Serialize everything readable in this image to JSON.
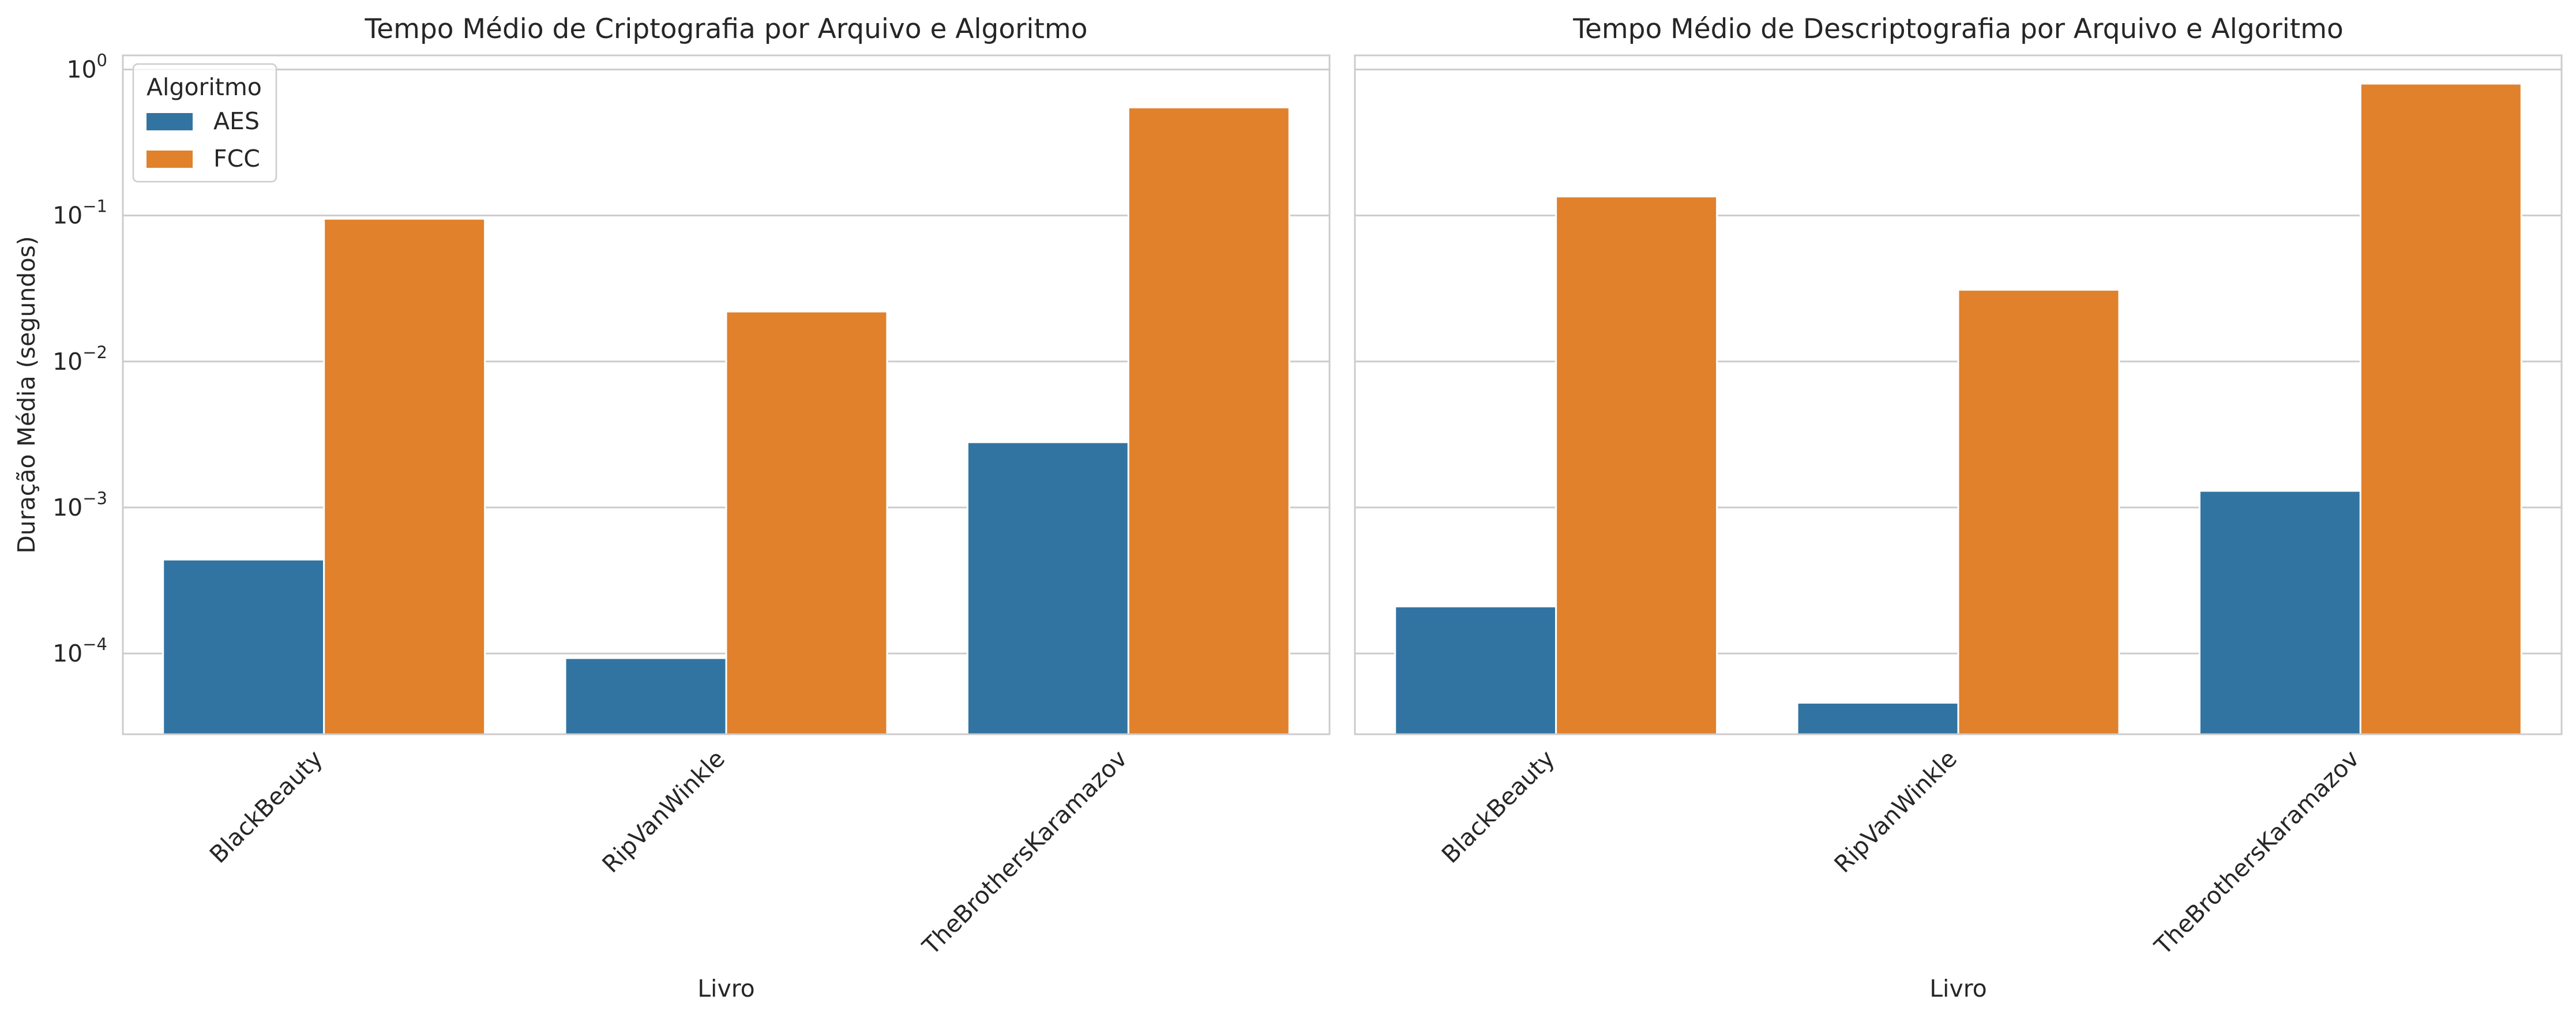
{
  "chart_data": [
    {
      "type": "bar",
      "title": "Tempo Médio de Criptografia por Arquivo e Algoritmo",
      "xlabel": "Livro",
      "ylabel": "Duração Média (segundos)",
      "yscale": "log",
      "ylim": [
        2.8e-05,
        1.25
      ],
      "yticks": [
        "10^-4",
        "10^-3",
        "10^-2",
        "10^-1",
        "10^0"
      ],
      "grid": true,
      "legend": {
        "title": "Algoritmo",
        "placement": "top-left"
      },
      "categories": [
        "BlackBeauty",
        "RipVanWinkle",
        "TheBrothersKaramazov"
      ],
      "series": [
        {
          "name": "AES",
          "color": "#3274a1",
          "values": [
            0.00044,
            9.3e-05,
            0.0028
          ]
        },
        {
          "name": "FCC",
          "color": "#e1812c",
          "values": [
            0.095,
            0.022,
            0.55
          ]
        }
      ]
    },
    {
      "type": "bar",
      "title": "Tempo Médio de Descriptografia por Arquivo e Algoritmo",
      "xlabel": "Livro",
      "ylabel": "",
      "yscale": "log",
      "ylim": [
        2.8e-05,
        1.25
      ],
      "grid": true,
      "categories": [
        "BlackBeauty",
        "RipVanWinkle",
        "TheBrothersKaramazov"
      ],
      "series": [
        {
          "name": "AES",
          "color": "#3274a1",
          "values": [
            0.00021,
            4.6e-05,
            0.0013
          ]
        },
        {
          "name": "FCC",
          "color": "#e1812c",
          "values": [
            0.135,
            0.031,
            0.8
          ]
        }
      ]
    }
  ]
}
